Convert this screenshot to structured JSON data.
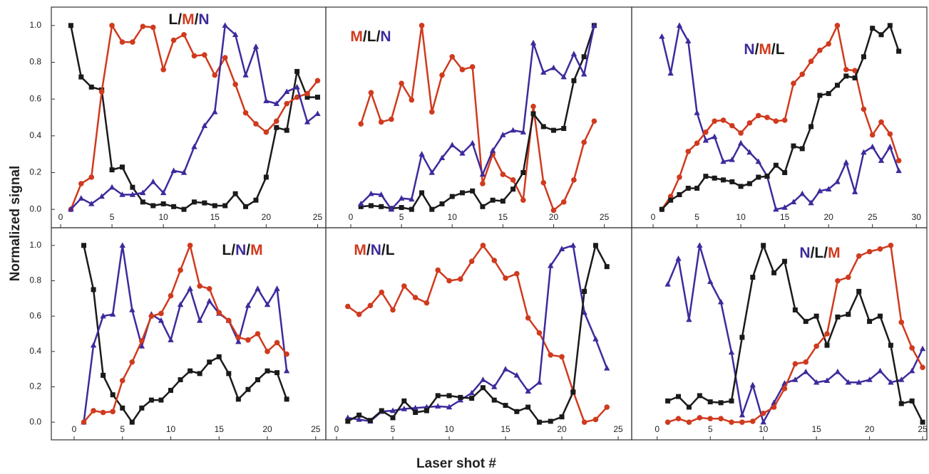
{
  "y_label": "Normalized signal",
  "x_label": "Laser shot #",
  "chart_data": [
    {
      "type": "line",
      "legend_separator": "/",
      "x": [
        1,
        2,
        3,
        4,
        5,
        6,
        7,
        8,
        9,
        10,
        11,
        12,
        13,
        14,
        15,
        16,
        17,
        18,
        19,
        20,
        21,
        22,
        23,
        24,
        25
      ],
      "xlim": [
        -0.9,
        25.8
      ],
      "xticks": [
        0,
        5,
        10,
        15,
        20,
        25
      ],
      "ylim": [
        -0.1,
        1.1
      ],
      "yticks": [
        {
          "value": 0,
          "label": "0.0"
        },
        {
          "value": 0.2,
          "label": "0.2"
        },
        {
          "value": 0.4,
          "label": "0.4"
        },
        {
          "value": 0.6,
          "label": "0.6"
        },
        {
          "value": 0.8,
          "label": "0.8"
        },
        {
          "value": 1,
          "label": "1.0"
        }
      ],
      "series": [
        {
          "name": "L",
          "color": "#1a1a1a",
          "marker": "square",
          "values": [
            1.0,
            0.72,
            0.665,
            0.65,
            0.215,
            0.23,
            0.12,
            0.04,
            0.02,
            0.03,
            0.015,
            0.0,
            0.04,
            0.035,
            0.02,
            0.02,
            0.085,
            0.015,
            0.05,
            0.175,
            0.445,
            0.43,
            0.75,
            0.61,
            0.61
          ]
        },
        {
          "name": "M",
          "color": "#d03a1e",
          "marker": "circle",
          "values": [
            0.0,
            0.14,
            0.175,
            0.64,
            1.0,
            0.91,
            0.91,
            0.995,
            0.99,
            0.76,
            0.92,
            0.95,
            0.835,
            0.84,
            0.73,
            0.825,
            0.68,
            0.525,
            0.465,
            0.42,
            0.48,
            0.575,
            0.61,
            0.63,
            0.7
          ]
        },
        {
          "name": "N",
          "color": "#3f2a9c",
          "marker": "triangle",
          "values": [
            0.0,
            0.06,
            0.03,
            0.07,
            0.12,
            0.08,
            0.08,
            0.09,
            0.15,
            0.09,
            0.21,
            0.2,
            0.34,
            0.455,
            0.53,
            1.0,
            0.95,
            0.73,
            0.885,
            0.59,
            0.575,
            0.64,
            0.665,
            0.475,
            0.52
          ]
        }
      ]
    },
    {
      "type": "line",
      "legend_separator": "/",
      "x": [
        1,
        2,
        3,
        4,
        5,
        6,
        7,
        8,
        9,
        10,
        11,
        12,
        13,
        14,
        15,
        16,
        17,
        18,
        19,
        20,
        21,
        22,
        23,
        24
      ],
      "xlim": [
        -2.46,
        27.7
      ],
      "xticks": [
        0,
        5,
        10,
        15,
        20,
        25
      ],
      "ylim": [
        -0.1,
        1.1
      ],
      "series": [
        {
          "name": "M",
          "color": "#d03a1e",
          "marker": "circle",
          "values": [
            0.465,
            0.635,
            0.475,
            0.49,
            0.685,
            0.595,
            1.0,
            0.53,
            0.73,
            0.83,
            0.76,
            0.775,
            0.14,
            0.3,
            0.19,
            0.16,
            0.05,
            0.56,
            0.145,
            -0.005,
            0.04,
            0.16,
            0.365,
            0.48
          ]
        },
        {
          "name": "L",
          "color": "#1a1a1a",
          "marker": "square",
          "values": [
            0.015,
            0.02,
            0.015,
            0.005,
            0.01,
            0.0,
            0.09,
            0.0,
            0.03,
            0.07,
            0.09,
            0.1,
            0.015,
            0.05,
            0.045,
            0.11,
            0.2,
            0.52,
            0.45,
            0.43,
            0.44,
            0.7,
            0.83,
            1.0
          ]
        },
        {
          "name": "N",
          "color": "#3f2a9c",
          "marker": "triangle",
          "values": [
            0.03,
            0.085,
            0.08,
            0.0,
            0.06,
            0.055,
            0.3,
            0.2,
            0.28,
            0.35,
            0.305,
            0.36,
            0.19,
            0.32,
            0.405,
            0.43,
            0.42,
            0.905,
            0.745,
            0.77,
            0.72,
            0.845,
            0.735,
            1.0
          ]
        }
      ]
    },
    {
      "type": "line",
      "legend_separator": "/",
      "x": [
        1,
        2,
        3,
        4,
        5,
        6,
        7,
        8,
        9,
        10,
        11,
        12,
        13,
        14,
        15,
        16,
        17,
        18,
        19,
        20,
        21,
        22,
        23,
        24,
        25,
        26,
        27,
        28
      ],
      "xlim": [
        -2.44,
        31.2
      ],
      "xticks": [
        0,
        5,
        10,
        15,
        20,
        25,
        30
      ],
      "ylim": [
        -0.1,
        1.1
      ],
      "series": [
        {
          "name": "N",
          "color": "#3f2a9c",
          "marker": "triangle",
          "values": [
            0.94,
            0.74,
            1.0,
            0.915,
            0.525,
            0.375,
            0.395,
            0.26,
            0.27,
            0.36,
            0.31,
            0.26,
            0.18,
            0.0,
            0.01,
            0.04,
            0.085,
            0.035,
            0.1,
            0.11,
            0.15,
            0.255,
            0.095,
            0.31,
            0.34,
            0.265,
            0.34,
            0.21
          ]
        },
        {
          "name": "M",
          "color": "#d03a1e",
          "marker": "circle",
          "values": [
            0.0,
            0.07,
            0.175,
            0.315,
            0.36,
            0.42,
            0.48,
            0.485,
            0.455,
            0.415,
            0.47,
            0.51,
            0.5,
            0.48,
            0.485,
            0.685,
            0.735,
            0.805,
            0.865,
            0.9,
            1.0,
            0.76,
            0.755,
            0.545,
            0.405,
            0.475,
            0.41,
            0.265
          ]
        },
        {
          "name": "L",
          "color": "#1a1a1a",
          "marker": "square",
          "values": [
            0.0,
            0.05,
            0.08,
            0.115,
            0.115,
            0.18,
            0.17,
            0.16,
            0.15,
            0.125,
            0.14,
            0.175,
            0.18,
            0.24,
            0.2,
            0.345,
            0.33,
            0.45,
            0.62,
            0.63,
            0.675,
            0.725,
            0.715,
            0.83,
            0.985,
            0.95,
            1.0,
            0.86
          ]
        }
      ]
    },
    {
      "type": "line",
      "legend_separator": "/",
      "x": [
        1,
        2,
        3,
        4,
        5,
        6,
        7,
        8,
        9,
        10,
        11,
        12,
        13,
        14,
        15,
        16,
        17,
        18,
        19,
        20,
        21,
        22
      ],
      "xlim": [
        -2.36,
        26.05
      ],
      "xticks": [
        0,
        5,
        10,
        15,
        20,
        25
      ],
      "ylim": [
        -0.1,
        1.1
      ],
      "yticks": [
        {
          "value": 0,
          "label": "0.0"
        },
        {
          "value": 0.2,
          "label": "0.2"
        },
        {
          "value": 0.4,
          "label": "0.4"
        },
        {
          "value": 0.6,
          "label": "0.6"
        },
        {
          "value": 0.8,
          "label": "0.8"
        },
        {
          "value": 1,
          "label": "1.0"
        }
      ],
      "series": [
        {
          "name": "L",
          "color": "#1a1a1a",
          "marker": "square",
          "values": [
            1.0,
            0.75,
            0.265,
            0.155,
            0.08,
            0.0,
            0.08,
            0.125,
            0.125,
            0.18,
            0.24,
            0.29,
            0.275,
            0.34,
            0.37,
            0.275,
            0.13,
            0.185,
            0.24,
            0.29,
            0.28,
            0.13
          ]
        },
        {
          "name": "N",
          "color": "#3f2a9c",
          "marker": "triangle",
          "values": [
            0.0,
            0.435,
            0.6,
            0.61,
            1.0,
            0.635,
            0.43,
            0.61,
            0.575,
            0.465,
            0.665,
            0.755,
            0.575,
            0.685,
            0.615,
            0.575,
            0.455,
            0.66,
            0.755,
            0.665,
            0.755,
            0.29
          ]
        },
        {
          "name": "M",
          "color": "#d03a1e",
          "marker": "circle",
          "values": [
            0.0,
            0.065,
            0.055,
            0.06,
            0.235,
            0.34,
            0.46,
            0.6,
            0.615,
            0.715,
            0.86,
            1.0,
            0.77,
            0.755,
            0.62,
            0.575,
            0.48,
            0.465,
            0.5,
            0.4,
            0.45,
            0.385
          ]
        }
      ]
    },
    {
      "type": "line",
      "legend_separator": "/",
      "x": [
        1,
        2,
        3,
        4,
        5,
        6,
        7,
        8,
        9,
        10,
        11,
        12,
        13,
        14,
        15,
        16,
        17,
        18,
        19,
        20,
        21,
        22,
        23,
        24
      ],
      "xlim": [
        -0.95,
        26.2
      ],
      "xticks": [
        0,
        5,
        10,
        15,
        20,
        25
      ],
      "ylim": [
        -0.1,
        1.1
      ],
      "series": [
        {
          "name": "M",
          "color": "#d03a1e",
          "marker": "circle",
          "values": [
            0.655,
            0.61,
            0.66,
            0.735,
            0.635,
            0.77,
            0.705,
            0.675,
            0.86,
            0.8,
            0.81,
            0.91,
            1.0,
            0.915,
            0.815,
            0.84,
            0.59,
            0.505,
            0.38,
            0.37,
            0.175,
            0.0,
            0.015,
            0.085
          ]
        },
        {
          "name": "N",
          "color": "#3f2a9c",
          "marker": "triangle",
          "values": [
            0.025,
            0.015,
            0.005,
            0.06,
            0.065,
            0.075,
            0.08,
            0.085,
            0.09,
            0.085,
            0.125,
            0.165,
            0.24,
            0.2,
            0.3,
            0.265,
            0.175,
            0.225,
            0.885,
            0.98,
            1.0,
            0.62,
            0.47,
            0.305
          ]
        },
        {
          "name": "L",
          "color": "#1a1a1a",
          "marker": "square",
          "values": [
            0.005,
            0.04,
            0.01,
            0.065,
            0.025,
            0.12,
            0.055,
            0.065,
            0.15,
            0.15,
            0.14,
            0.135,
            0.195,
            0.125,
            0.095,
            0.06,
            0.085,
            0.0,
            0.005,
            0.03,
            0.17,
            0.74,
            1.0,
            0.88
          ]
        }
      ]
    },
    {
      "type": "line",
      "legend_separator": "/",
      "x": [
        1,
        2,
        3,
        4,
        5,
        6,
        7,
        8,
        9,
        10,
        11,
        12,
        13,
        14,
        15,
        16,
        17,
        18,
        19,
        20,
        21,
        22,
        23,
        24,
        25
      ],
      "xlim": [
        -2.4,
        25.4
      ],
      "xticks": [
        0,
        5,
        10,
        15,
        20,
        25
      ],
      "ylim": [
        -0.1,
        1.1
      ],
      "series": [
        {
          "name": "N",
          "color": "#3f2a9c",
          "marker": "triangle",
          "values": [
            0.78,
            0.925,
            0.58,
            1.0,
            0.795,
            0.68,
            0.395,
            0.04,
            0.21,
            0.0,
            0.11,
            0.22,
            0.24,
            0.285,
            0.225,
            0.235,
            0.285,
            0.225,
            0.225,
            0.24,
            0.29,
            0.225,
            0.24,
            0.29,
            0.415
          ]
        },
        {
          "name": "L",
          "color": "#1a1a1a",
          "marker": "square",
          "values": [
            0.12,
            0.145,
            0.085,
            0.15,
            0.115,
            0.11,
            0.12,
            0.48,
            0.82,
            1.0,
            0.845,
            0.91,
            0.635,
            0.57,
            0.6,
            0.435,
            0.595,
            0.61,
            0.74,
            0.57,
            0.6,
            0.435,
            0.105,
            0.12,
            0.0
          ]
        },
        {
          "name": "M",
          "color": "#d03a1e",
          "marker": "circle",
          "values": [
            0.0,
            0.02,
            0.0,
            0.025,
            0.02,
            0.02,
            0.0,
            0.0,
            0.005,
            0.05,
            0.085,
            0.19,
            0.33,
            0.34,
            0.43,
            0.5,
            0.8,
            0.82,
            0.94,
            0.965,
            0.98,
            1.0,
            0.565,
            0.42,
            0.31
          ]
        }
      ]
    }
  ]
}
